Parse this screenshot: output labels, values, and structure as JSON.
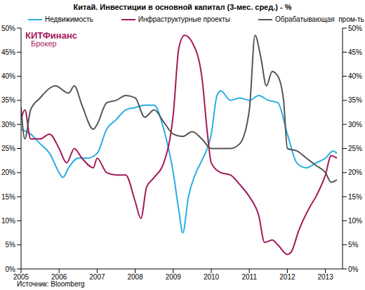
{
  "chart_data": {
    "type": "line",
    "title": "Китай. Инвестиции  в основной капитал (3-мес. сред.) - %",
    "logo": [
      "КИТФинанс",
      "Брокер"
    ],
    "source": "Источник: Bloomberg",
    "legend": "top",
    "grid": false,
    "xlim": [
      2005,
      2013.45
    ],
    "xticks": [
      2005,
      2006,
      2007,
      2008,
      2009,
      2010,
      2011,
      2012,
      2013
    ],
    "ylim": [
      0,
      50
    ],
    "yticks": [
      {
        "value": 0,
        "label": "0%"
      },
      {
        "value": 5,
        "label": "5%"
      },
      {
        "value": 10,
        "label": "10%"
      },
      {
        "value": 15,
        "label": "15%"
      },
      {
        "value": 20,
        "label": "20%"
      },
      {
        "value": 25,
        "label": "25%"
      },
      {
        "value": 30,
        "label": "30%"
      },
      {
        "value": 35,
        "label": "35%"
      },
      {
        "value": 40,
        "label": "40%"
      },
      {
        "value": 45,
        "label": "45%"
      },
      {
        "value": 50,
        "label": "50%"
      }
    ],
    "y2lim": [
      0,
      50
    ],
    "y2ticks": [
      {
        "value": 0,
        "label": "0%"
      },
      {
        "value": 5,
        "label": "5%"
      },
      {
        "value": 10,
        "label": "10%"
      },
      {
        "value": 15,
        "label": "15%"
      },
      {
        "value": 20,
        "label": "20%"
      },
      {
        "value": 25,
        "label": "25%"
      },
      {
        "value": 30,
        "label": "30%"
      },
      {
        "value": 35,
        "label": "35%"
      },
      {
        "value": 40,
        "label": "40%"
      },
      {
        "value": 45,
        "label": "45%"
      },
      {
        "value": 50,
        "label": "50%"
      }
    ],
    "series": [
      {
        "name": "Недвижимость",
        "color": "#29aee3",
        "x": [
          2005,
          2005.25,
          2005.5,
          2005.75,
          2006,
          2006.1,
          2006.25,
          2006.5,
          2006.75,
          2007,
          2007.25,
          2007.5,
          2007.75,
          2008,
          2008.25,
          2008.5,
          2008.75,
          2009,
          2009.15,
          2009.25,
          2009.4,
          2009.6,
          2009.75,
          2010,
          2010.15,
          2010.25,
          2010.5,
          2010.75,
          2011,
          2011.25,
          2011.5,
          2011.75,
          2012,
          2012.25,
          2012.5,
          2012.75,
          2013,
          2013.2,
          2013.3
        ],
        "values": [
          29,
          28,
          26,
          24,
          20,
          19,
          21,
          23,
          23,
          24,
          29,
          31,
          33,
          33.5,
          34,
          34,
          29,
          20,
          12,
          7.5,
          15,
          20,
          22.5,
          28,
          36,
          37,
          35,
          35.5,
          35,
          36,
          35,
          34.5,
          28,
          22,
          21,
          22,
          23,
          24.5,
          24
        ]
      },
      {
        "name": "Инфраструктурные проекты",
        "color": "#a3195b",
        "x": [
          2005,
          2005.1,
          2005.25,
          2005.5,
          2005.75,
          2006,
          2006.2,
          2006.4,
          2006.6,
          2006.9,
          2007,
          2007.25,
          2007.5,
          2007.75,
          2008,
          2008.15,
          2008.3,
          2008.5,
          2008.75,
          2009,
          2009.15,
          2009.3,
          2009.5,
          2009.75,
          2009.9,
          2010,
          2010.25,
          2010.5,
          2010.75,
          2011,
          2011.25,
          2011.4,
          2011.6,
          2011.75,
          2012,
          2012.1,
          2012.3,
          2012.6,
          2012.75,
          2013,
          2013.15,
          2013.3
        ],
        "values": [
          31,
          33,
          27,
          27,
          28,
          25,
          22,
          25,
          23,
          21,
          23,
          20,
          19.5,
          19.5,
          14,
          10.5,
          17,
          19,
          22,
          32,
          46,
          48.5,
          47,
          40,
          28,
          22,
          20,
          19.5,
          17.5,
          15,
          11,
          5.5,
          6,
          5,
          3,
          3.5,
          8,
          13,
          15,
          19.5,
          23.5,
          23
        ]
      },
      {
        "name": "Обрабатывающая  пром-ть",
        "color": "#555555",
        "x": [
          2005,
          2005.1,
          2005.25,
          2005.5,
          2005.75,
          2005.9,
          2006.25,
          2006.4,
          2006.6,
          2006.9,
          2007,
          2007.25,
          2007.5,
          2007.75,
          2008,
          2008.25,
          2008.5,
          2008.75,
          2009,
          2009.25,
          2009.5,
          2009.75,
          2010,
          2010.25,
          2010.5,
          2010.75,
          2011,
          2011.15,
          2011.3,
          2011.45,
          2011.6,
          2011.75,
          2011.9,
          2012,
          2012.25,
          2012.5,
          2012.75,
          2013,
          2013.15,
          2013.3
        ],
        "values": [
          33.5,
          27,
          33,
          35.5,
          37.5,
          38,
          36.5,
          38,
          34,
          29,
          30,
          34.5,
          35,
          36,
          35.5,
          31.5,
          33,
          30.5,
          28,
          27.5,
          28.5,
          27,
          25,
          25,
          25,
          26,
          33,
          48.5,
          44,
          38,
          41,
          40,
          35,
          25,
          24.5,
          23,
          21.5,
          20,
          18,
          18.5
        ]
      }
    ]
  }
}
